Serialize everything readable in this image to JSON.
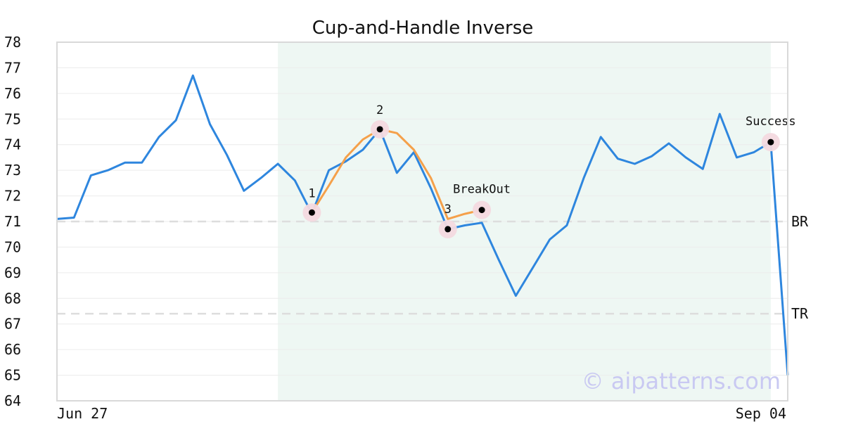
{
  "chart_data": {
    "type": "line",
    "title": "Cup-and-Handle Inverse",
    "x_tick_labels": [
      "Jun 27",
      "Sep 04"
    ],
    "ylim": [
      64,
      78
    ],
    "y_ticks": [
      64,
      65,
      66,
      67,
      68,
      69,
      70,
      71,
      72,
      73,
      74,
      75,
      76,
      77,
      78
    ],
    "grid": "horizontal",
    "series": [
      {
        "color": "#2e86de",
        "values": [
          71.1,
          71.15,
          72.8,
          73.0,
          73.3,
          73.3,
          74.3,
          74.95,
          76.7,
          74.8,
          73.6,
          72.2,
          72.7,
          73.25,
          72.6,
          71.3,
          73.0,
          73.35,
          73.8,
          74.6,
          72.9,
          73.7,
          72.3,
          70.7,
          70.85,
          70.95,
          69.5,
          68.1,
          69.2,
          70.3,
          70.85,
          72.7,
          74.3,
          73.45,
          73.25,
          73.55,
          74.05,
          73.5,
          73.05,
          75.2,
          73.5,
          73.7,
          74.1,
          65.0
        ]
      },
      {
        "color": "#f5a04a",
        "pattern_path_points": [
          [
            15,
            71.35
          ],
          [
            16,
            72.4
          ],
          [
            17,
            73.5
          ],
          [
            18,
            74.2
          ],
          [
            19,
            74.6
          ],
          [
            20,
            74.45
          ],
          [
            21,
            73.8
          ],
          [
            22,
            72.7
          ],
          [
            23,
            71.1
          ],
          [
            24,
            71.3
          ],
          [
            25,
            71.45
          ]
        ]
      }
    ],
    "reference_lines": [
      {
        "label": "BR",
        "y": 71.0,
        "color": "#dddddd"
      },
      {
        "label": "TR",
        "y": 67.4,
        "color": "#dddddd"
      }
    ],
    "shaded_region": {
      "x_start": 13,
      "x_end": 42,
      "color": "#eef7f3"
    },
    "markers": [
      {
        "x": 15,
        "y": 71.35,
        "label": "1"
      },
      {
        "x": 19,
        "y": 74.6,
        "label": "2"
      },
      {
        "x": 23,
        "y": 70.7,
        "label": "3"
      },
      {
        "x": 25,
        "y": 71.45,
        "label": "BreakOut"
      },
      {
        "x": 42,
        "y": 74.1,
        "label": "Success"
      }
    ],
    "watermark": "© aipatterns.com"
  }
}
